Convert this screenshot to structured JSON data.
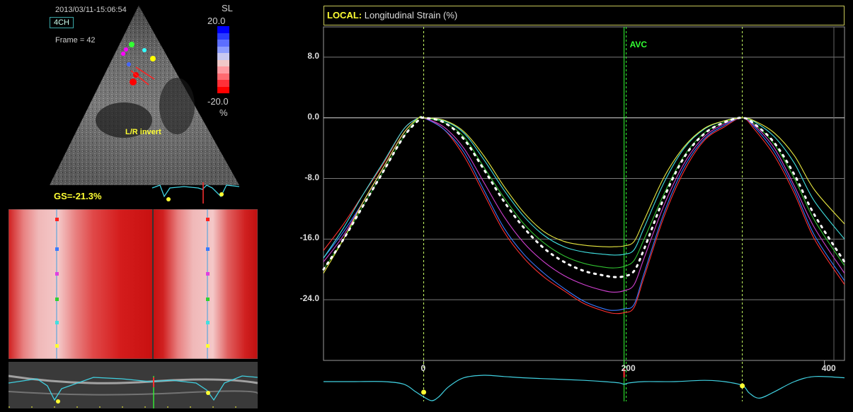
{
  "echo": {
    "timestamp": "2013/03/11-15:06:54",
    "view": "4CH",
    "frame": "Frame = 42",
    "lr_invert": "L/R invert",
    "gs": "GS=-21.3%"
  },
  "colorbar": {
    "mode": "SL",
    "max": "20.0",
    "min": "-20.0",
    "unit": "%",
    "colors": [
      "#0000ff",
      "#2a3cff",
      "#5c6eff",
      "#8c9cff",
      "#c8c8f0",
      "#f0c8c8",
      "#ff9aa0",
      "#ff6a70",
      "#ff3038",
      "#ff0000"
    ]
  },
  "chart_data": {
    "type": "line",
    "title_prefix": "LOCAL:",
    "title": "Longitudinal Strain (%)",
    "xlim": [
      -100,
      420
    ],
    "ylim": [
      -32,
      12
    ],
    "yticks": [
      8.0,
      0.0,
      -8.0,
      -16.0,
      -24.0
    ],
    "ytick_labels": [
      "8.0",
      "0.0",
      "-8.0",
      "-16.0",
      "-24.0"
    ],
    "xticks": [
      0,
      200,
      400
    ],
    "xtick_labels": [
      "0",
      "200",
      "400"
    ],
    "markers": [
      {
        "x": 0,
        "color": "#c8ff64",
        "label": ""
      },
      {
        "x": 200,
        "color": "#33ff33",
        "label": "AVC"
      },
      {
        "x": 318,
        "color": "#c8ff64",
        "label": ""
      }
    ],
    "series": [
      {
        "color": "#ff3030",
        "style": "solid",
        "x": [
          -100,
          -80,
          -60,
          -40,
          -20,
          -5,
          0,
          20,
          40,
          60,
          80,
          100,
          120,
          140,
          160,
          180,
          190,
          200,
          210,
          220,
          240,
          260,
          280,
          300,
          318,
          330,
          350,
          370,
          390,
          420
        ],
        "y": [
          -17.5,
          -14,
          -10,
          -6,
          -1.5,
          0,
          0,
          -1.5,
          -5,
          -10,
          -15,
          -18.5,
          -21,
          -22.8,
          -24.5,
          -25.5,
          -25.8,
          -25.7,
          -25,
          -21,
          -13,
          -7,
          -3,
          -1.2,
          0,
          -1.5,
          -5,
          -10,
          -16,
          -22
        ]
      },
      {
        "color": "#3a7aff",
        "style": "solid",
        "x": [
          -100,
          -80,
          -60,
          -40,
          -20,
          -5,
          0,
          20,
          40,
          60,
          80,
          100,
          120,
          140,
          160,
          180,
          190,
          200,
          210,
          220,
          240,
          260,
          280,
          300,
          318,
          330,
          350,
          370,
          390,
          420
        ],
        "y": [
          -18.5,
          -15,
          -11,
          -6.5,
          -2,
          0,
          0,
          -1.5,
          -4.5,
          -9.5,
          -14.5,
          -18,
          -20.5,
          -22.5,
          -24.2,
          -25.2,
          -25.4,
          -25.2,
          -24.6,
          -20.5,
          -12.5,
          -6.5,
          -2.8,
          -1,
          0,
          -1.2,
          -4.5,
          -9.5,
          -15.5,
          -21.5
        ]
      },
      {
        "color": "#d040d0",
        "style": "solid",
        "x": [
          -100,
          -80,
          -60,
          -40,
          -20,
          -5,
          0,
          20,
          40,
          60,
          80,
          100,
          120,
          140,
          160,
          180,
          190,
          200,
          210,
          220,
          240,
          260,
          280,
          300,
          318,
          330,
          350,
          370,
          390,
          420
        ],
        "y": [
          -19,
          -15.5,
          -11,
          -6.5,
          -2,
          0,
          0,
          -1.2,
          -4,
          -8.5,
          -13,
          -16.5,
          -19,
          -20.8,
          -22,
          -22.8,
          -23,
          -22.8,
          -22,
          -18.5,
          -11.5,
          -6,
          -2.5,
          -0.8,
          0,
          -1,
          -4,
          -9,
          -14.5,
          -20.5
        ]
      },
      {
        "color": "#30c030",
        "style": "solid",
        "x": [
          -100,
          -80,
          -60,
          -40,
          -20,
          -5,
          0,
          20,
          40,
          60,
          80,
          100,
          120,
          140,
          160,
          180,
          190,
          200,
          210,
          220,
          240,
          260,
          280,
          300,
          318,
          330,
          350,
          370,
          390,
          420
        ],
        "y": [
          -20,
          -16,
          -11.5,
          -7,
          -2.5,
          0,
          0,
          -0.6,
          -2.5,
          -6.5,
          -10.5,
          -14,
          -16.5,
          -18.2,
          -19.2,
          -19.7,
          -19.8,
          -19.6,
          -18.8,
          -16,
          -10,
          -5,
          -2,
          -0.6,
          0,
          -0.8,
          -3.5,
          -8,
          -13.5,
          -19.5
        ]
      },
      {
        "color": "#40e0e0",
        "style": "solid",
        "x": [
          -100,
          -80,
          -60,
          -40,
          -20,
          -5,
          0,
          20,
          40,
          60,
          80,
          100,
          120,
          140,
          160,
          180,
          190,
          200,
          210,
          220,
          240,
          260,
          280,
          300,
          318,
          330,
          350,
          370,
          390,
          420
        ],
        "y": [
          -18.5,
          -14.5,
          -10,
          -5.8,
          -1.5,
          0,
          0,
          -0.4,
          -2,
          -5.5,
          -9.5,
          -13,
          -15.5,
          -17,
          -17.7,
          -18,
          -18.1,
          -18,
          -17.4,
          -14.5,
          -8.5,
          -4,
          -1.5,
          -0.4,
          0,
          -0.5,
          -2.5,
          -6,
          -11,
          -16
        ]
      },
      {
        "color": "#e8e840",
        "style": "solid",
        "x": [
          -100,
          -80,
          -60,
          -40,
          -20,
          -5,
          0,
          20,
          40,
          60,
          80,
          100,
          120,
          140,
          160,
          180,
          190,
          200,
          210,
          220,
          240,
          260,
          280,
          300,
          318,
          330,
          350,
          370,
          390,
          420
        ],
        "y": [
          -20.5,
          -16,
          -11,
          -6.5,
          -2,
          0,
          0,
          -0.3,
          -1.8,
          -5,
          -9,
          -12.5,
          -15,
          -16.3,
          -16.8,
          -17,
          -17,
          -16.9,
          -16.3,
          -13.5,
          -7.8,
          -3.8,
          -1.4,
          -0.4,
          0,
          -0.4,
          -2,
          -5,
          -9.5,
          -14
        ]
      },
      {
        "color": "#ffffff",
        "style": "dotted",
        "x": [
          -100,
          -80,
          -60,
          -40,
          -20,
          -5,
          0,
          20,
          40,
          60,
          80,
          100,
          120,
          140,
          160,
          180,
          190,
          200,
          210,
          220,
          240,
          260,
          280,
          300,
          318,
          330,
          350,
          370,
          390,
          420
        ],
        "y": [
          -20,
          -16,
          -11.5,
          -7,
          -2.5,
          -0.3,
          0,
          -0.6,
          -2.8,
          -6.8,
          -11,
          -14.5,
          -17.2,
          -19,
          -20.2,
          -20.8,
          -21,
          -20.9,
          -20.2,
          -17.3,
          -10.5,
          -5.2,
          -2.1,
          -0.6,
          0,
          -0.8,
          -3.3,
          -7.5,
          -12.8,
          -19
        ]
      }
    ],
    "ecg": {
      "color": "#40d0e0",
      "x": [
        -100,
        -70,
        -40,
        -20,
        -8,
        0,
        8,
        15,
        25,
        40,
        60,
        80,
        100,
        130,
        160,
        180,
        195,
        200,
        205,
        220,
        250,
        280,
        300,
        318,
        325,
        335,
        350,
        370,
        390,
        420
      ],
      "y": [
        0,
        0,
        0,
        0.2,
        0.8,
        1.2,
        1.5,
        1.2,
        0.4,
        -0.3,
        -0.5,
        -0.4,
        -0.3,
        -0.2,
        -0.1,
        0,
        0.1,
        0.2,
        0.1,
        0,
        0,
        -0.1,
        0,
        0.3,
        0.9,
        1.3,
        0.8,
        0,
        -0.4,
        -0.3
      ]
    }
  }
}
